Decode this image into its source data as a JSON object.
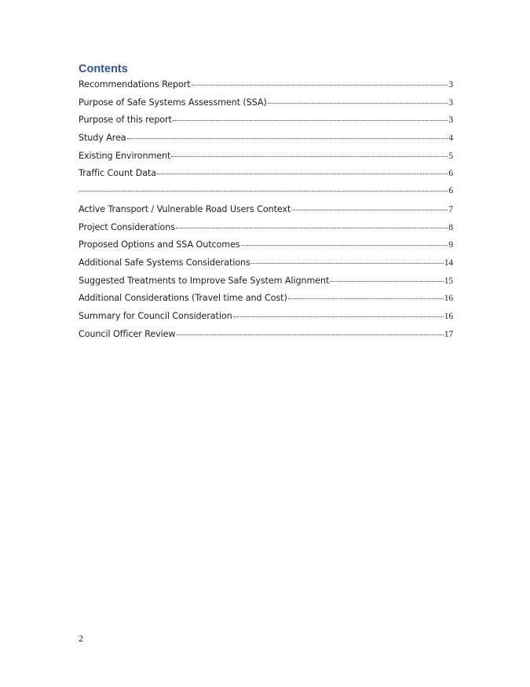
{
  "heading": "Contents",
  "entries": [
    {
      "title": "Recommendations Report",
      "page": "3"
    },
    {
      "title": "Purpose of Safe Systems Assessment (SSA)",
      "page": "3"
    },
    {
      "title": "Purpose of this report",
      "page": "3"
    },
    {
      "title": "Study Area",
      "page": "4"
    },
    {
      "title": "Existing Environment",
      "page": "5"
    },
    {
      "title": "Traffic Count Data",
      "page": "6"
    },
    {
      "title": "",
      "page": "6"
    },
    {
      "title": "Active Transport / Vulnerable Road Users Context",
      "page": "7"
    },
    {
      "title": "Project Considerations",
      "page": "8"
    },
    {
      "title": "Proposed Options and SSA Outcomes",
      "page": "9"
    },
    {
      "title": "Additional Safe Systems Considerations",
      "page": "14"
    },
    {
      "title": "Suggested Treatments to Improve Safe System Alignment",
      "page": "15"
    },
    {
      "title": "Additional Considerations (Travel time and Cost)",
      "page": "16"
    },
    {
      "title": "Summary for Council Consideration",
      "page": "16"
    },
    {
      "title": "Council Officer Review",
      "page": "17"
    }
  ],
  "page_number": "2",
  "colors": {
    "heading": "#2f5597"
  }
}
